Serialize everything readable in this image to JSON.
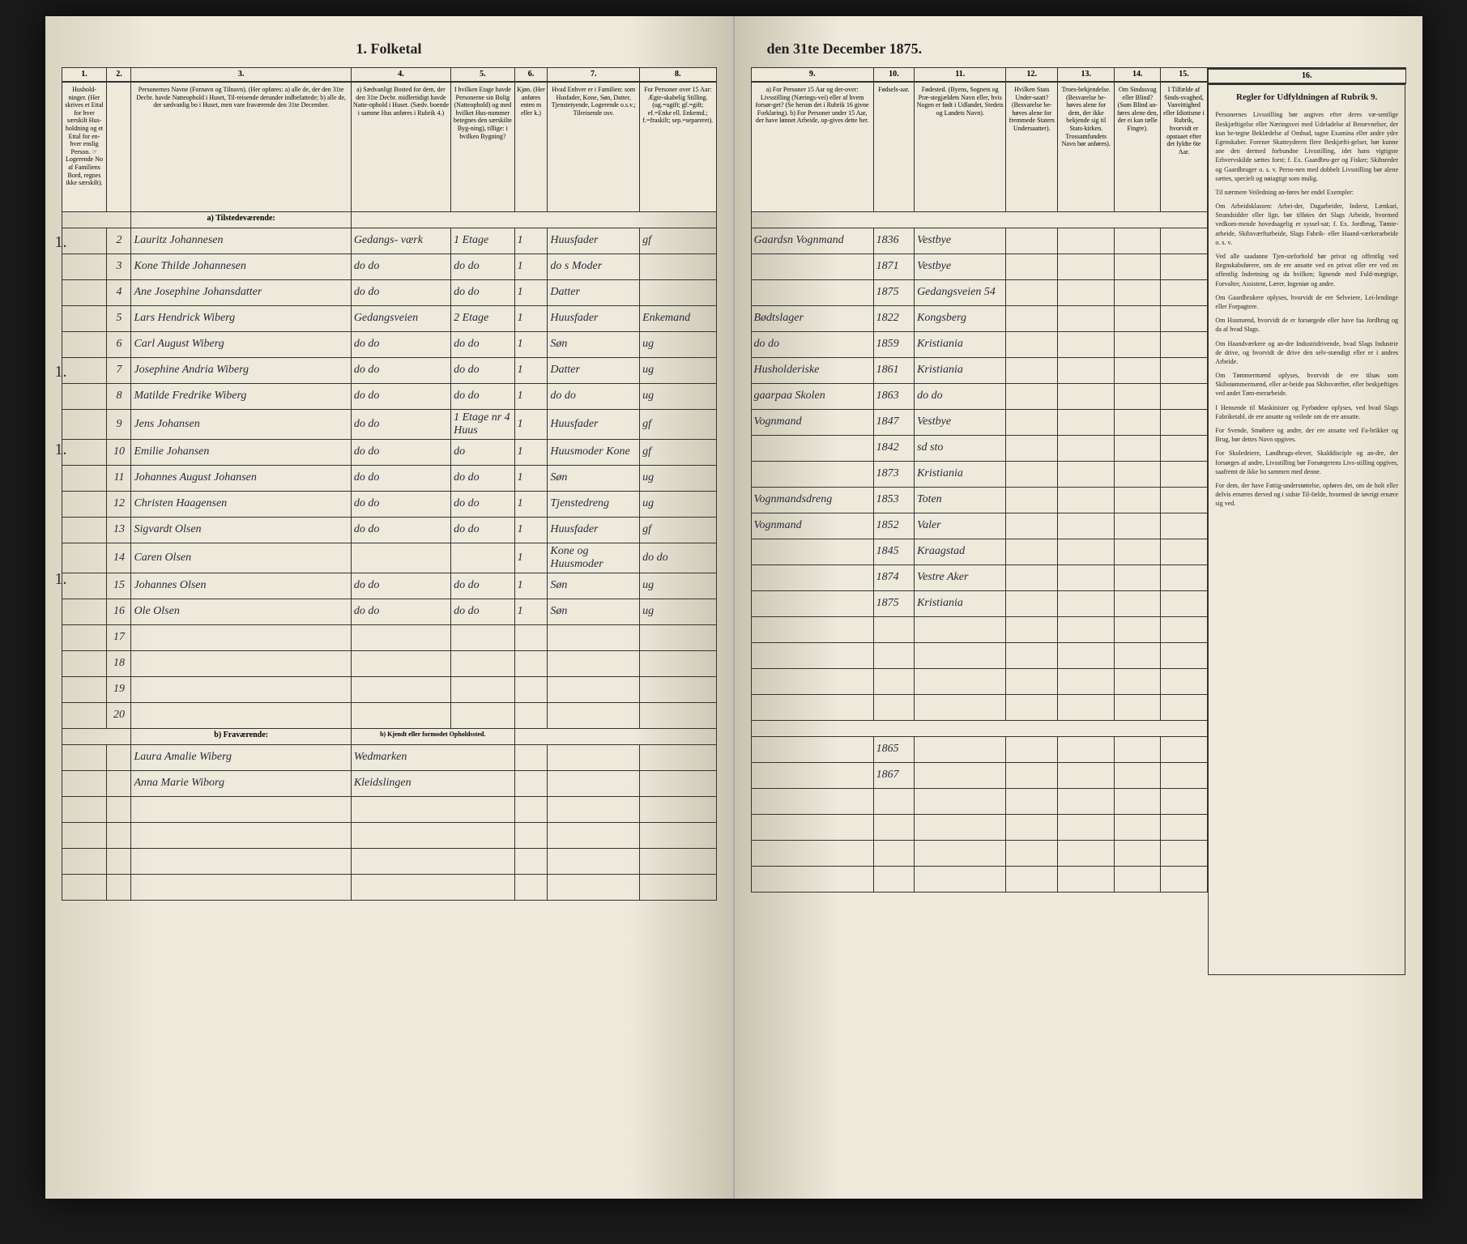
{
  "title_left": "1. Folketal",
  "title_right": "den 31te December 1875.",
  "col_nums_left": [
    "1.",
    "2.",
    "3.",
    "4.",
    "5.",
    "6.",
    "7.",
    "8."
  ],
  "col_nums_right": [
    "9.",
    "10.",
    "11.",
    "12.",
    "13.",
    "14.",
    "15.",
    "16."
  ],
  "headers_left": {
    "c1": "Hushold-ninger.\n(Her skrives et Ettal for hver særskilt Hus-holdning og et Ettal for en-hver enslig Person.\n☞ Logerende No af Familiens Bord, regnes ikke særskilt).",
    "c2": "",
    "c3": "Personernes Navne (Fornavn og Tilnavn).\n(Her opføres:\na) alle de, der den 31te Decbr. havde Natteophold i Huset, Til-reisende derunder indbefattede;\nb) alle de, der sædvanlig bo i Huset, men vare fraværende den 31te December.",
    "c4": "a) Sædvanligt Bosted for dem, der den 31te Decbr. midlertidigt havde Natte-ophold i Huset.\n(Sædv. boende i samme Hus anføres i Rubrik 4.)",
    "c5": "I hvilken Etage havde Personerne sin Bolig (Natteophold) og med hvilket Hus-nummer betegnes den særskilte Byg-ning), tillige: i hvilken Bygning?",
    "c6": "Kjøn.\n(Her anføres enten m eller k.)",
    "c7": "Hvad Enhver er i Familien:\nsom Husfader, Kone, Søn, Datter, Tjenstetyende, Logerende o.s.v.; Tilreisende osv.",
    "c8": "For Personer over 15 Aar: Ægte-skabelig Stilling.\n(ug.=ugift; gf.=gift; ef.=Enke ell. Enkemd.; f.=fraskilt; sep.=separeret)."
  },
  "headers_right": {
    "c9": "a) For Personer 15 Aar og der-over: Livsstilling (Nærings-vei) eller af hvem forsør-get? (Se herom det i Rubrik 16 givne Forklaring).\nb) For Personer under 15 Aar, der have lønnet Arbeide, op-gives dette her.",
    "c10": "Fødsels-aar.",
    "c11": "Fødested.\n(Byens, Sognets og Præ-stegjældets Navn eller, hvis Nogen er født i Udlandet, Stedets og Landets Navn).",
    "c12": "Hvilken Stats Under-saatt?\n(Besvarelse be-høves alene for fremmede Staters Undersaatter).",
    "c13": "Troes-bekjendelse.\n(Besvarelse be-høves alene for dem, der ikke bekjende sig til Stats-kirken. Trossamfundets Navn bør anføres).",
    "c14": "Om Sindssvag eller Blind?\n(Som Blind an-føres alene den, der ei kan tælle Fingre).",
    "c15": "I Tilfælde af Sinds-svaghed, Vanvittighed eller Idiotisme i Rubrik, hvorvidt er opstaaet efter det fyldte 6te Aar."
  },
  "rules_title": "Regler for Udfyldningen\naf\nRubrik 9.",
  "rules_text": [
    "Personernes Livsstilling bør angives efter deres væ-sentlige Beskjæftigelse eller Næringsvei med Udeladelse af Benævnelser, der kun be-tegne Beklædelse af Ombud, tagne Examina eller andre ydre Egenskaber. Forener Skatteyderen flere Beskjæfti-gelser, bør kunne ane den dermed forbundne Livsstilling, idet hans vigtigste Erhvervskilde sættes forst; f. Ex. Gaardbru-ger og Fisker; Skibsreder og Gaardbruger o. s. v. Perso-nen med dobbelt Livsstilling bør alene sættes, specielt og nøiagtigt som mulig.",
    "Til nærmere Veiledning an-føres her endel Exempler:",
    "Om Arbeidsklassen: Arbei-der, Dagarbeider, Inderst, Lænkari, Strandsidder eller lign. bør tilføies det Slags Arbeide, hvormed vedkom-mende hovedsagelig er syssel-sat; f. Ex. Jordbrug, Tømte-arbeide, Skibsværftarbeide, Slags Fabrik- eller Haand-værkerarbeide o. s. v.",
    "Ved alle saadanne Tjen-steforhold bør privat og offentlig ved Regnskabsførere, om de ere ansatte ved en privat eller ere ved en offentlig Indretning og da hvilken; lignende med Fuld-mægtige, Forvalter, Assistent, Lærer, Ingeniør og andre.",
    "Om Gaardbrukere oplyses, hvorvidt de ere Selveiere, Lei-lendinge eller Forpagtere.",
    "Om Husmænd, hvorvidt de er forsørgede eller have faa Jordbrug og da af hvad Slags.",
    "Om Haandværkere og an-dre Industridrivende, hvad Slags Industrie de drive, og hvorvidt de drive den selv-stændigt eller er i andres Arbeide.",
    "Om Tømmermænd oplyses, hvorvidt de ere tilsøs som Skibstømmermænd, eller ar-beide paa Skibsværfter, eller beskjæftiges ved andet Tøm-merarbeide.",
    "I Hensende til Maskinister og Fyrbødere oplyses, ved hvad Slags Fabriketabl. de ere ansatte og veilede om de ere ansatte.",
    "For Svende, Smøbere og andre, der ere ansatte ved Fa-brikker og Brug, bør dettes Navn opgives.",
    "For Skoledeiere, Landbrugs-elever, Skalddisciple og an-dre, der forsørges af andre, Livsstilling bør Forsørgerens Livs-stilling opgives, saafremt de ikke bo sammen med denne.",
    "For dem, der have Fattig-understøttelse, opføres det, om de holt eller delvis ernæres derved og i sidste Til-fælde, hvormed de iøvrigt ernære sig ved."
  ],
  "section_a": "a) Tilstedeværende:",
  "section_b": "b) Fraværende:",
  "section_b_header": "b) Kjendt eller formodet Opholdssted.",
  "rows": [
    {
      "n": "2",
      "name": "Lauritz Johannesen",
      "c4": "Gedangs-\nværk",
      "c5": "1 Etage",
      "c6": "1",
      "c7": "Huusfader",
      "c8": "gf",
      "c9": "Gaardsn\nVognmand",
      "c10": "1836",
      "c11": "Vestbye"
    },
    {
      "n": "3",
      "name": "Kone Thilde Johannesen",
      "c4": "do do",
      "c5": "do do",
      "c6": "1",
      "c7": "do s\nModer",
      "c8": "",
      "c9": "",
      "c10": "1871",
      "c11": "Vestbye"
    },
    {
      "n": "4",
      "name": "Ane Josephine Johansdatter",
      "c4": "do do",
      "c5": "do do",
      "c6": "1",
      "c7": "Datter",
      "c8": "",
      "c9": "",
      "c10": "1875",
      "c11": "Gedangsveien\n54"
    },
    {
      "n": "5",
      "name": "Lars Hendrick Wiberg",
      "c4": "Gedangsveien",
      "c5": "2 Etage",
      "c6": "1",
      "c7": "Huusfader",
      "c8": "Enkemand",
      "c9": "Bødtslager",
      "c10": "1822",
      "c11": "Kongsberg"
    },
    {
      "n": "6",
      "name": "Carl August Wiberg",
      "c4": "do do",
      "c5": "do do",
      "c6": "1",
      "c7": "Søn",
      "c8": "ug",
      "c9": "do do",
      "c10": "1859",
      "c11": "Kristiania"
    },
    {
      "n": "7",
      "name": "Josephine Andria Wiberg",
      "c4": "do do",
      "c5": "do do",
      "c6": "1",
      "c7": "Datter",
      "c8": "ug",
      "c9": "Husholderiske",
      "c10": "1861",
      "c11": "Kristiania"
    },
    {
      "n": "8",
      "name": "Matilde Fredrike Wiberg",
      "c4": "do do",
      "c5": "do do",
      "c6": "1",
      "c7": "do do",
      "c8": "ug",
      "c9": "gaarpaa Skolen",
      "c10": "1863",
      "c11": "do do"
    },
    {
      "n": "9",
      "name": "Jens Johansen",
      "c4": "do do",
      "c5": "1 Etage\nnr 4 Huus",
      "c6": "1",
      "c7": "Huusfader",
      "c8": "gf",
      "c9": "Vognmand",
      "c10": "1847",
      "c11": "Vestbye"
    },
    {
      "n": "10",
      "name": "Emilie Johansen",
      "c4": "do do",
      "c5": "do",
      "c6": "1",
      "c7": "Huusmoder\nKone",
      "c8": "gf",
      "c9": "",
      "c10": "1842",
      "c11": "sd sto"
    },
    {
      "n": "11",
      "name": "Johannes August Johansen",
      "c4": "do do",
      "c5": "do do",
      "c6": "1",
      "c7": "Søn",
      "c8": "ug",
      "c9": "",
      "c10": "1873",
      "c11": "Kristiania"
    },
    {
      "n": "12",
      "name": "Christen Haagensen",
      "c4": "do do",
      "c5": "do do",
      "c6": "1",
      "c7": "Tjenstedreng",
      "c8": "ug",
      "c9": "Vognmandsdreng",
      "c10": "1853",
      "c11": "Toten"
    },
    {
      "n": "13",
      "name": "Sigvardt Olsen",
      "c4": "do do",
      "c5": "do do",
      "c6": "1",
      "c7": "Huusfader",
      "c8": "gf",
      "c9": "Vognmand",
      "c10": "1852",
      "c11": "Valer"
    },
    {
      "n": "14",
      "name": "Caren Olsen",
      "c4": "",
      "c5": "",
      "c6": "1",
      "c7": "Kone og\nHuusmoder",
      "c8": "do do",
      "c9": "",
      "c10": "1845",
      "c11": "Kraagstad"
    },
    {
      "n": "15",
      "name": "Johannes Olsen",
      "c4": "do do",
      "c5": "do do",
      "c6": "1",
      "c7": "Søn",
      "c8": "ug",
      "c9": "",
      "c10": "1874",
      "c11": "Vestre Aker"
    },
    {
      "n": "16",
      "name": "Ole Olsen",
      "c4": "do do",
      "c5": "do do",
      "c6": "1",
      "c7": "Søn",
      "c8": "ug",
      "c9": "",
      "c10": "1875",
      "c11": "Kristiania"
    },
    {
      "n": "17",
      "name": "",
      "c4": "",
      "c5": "",
      "c6": "",
      "c7": "",
      "c8": "",
      "c9": "",
      "c10": "",
      "c11": ""
    },
    {
      "n": "18",
      "name": "",
      "c4": "",
      "c5": "",
      "c6": "",
      "c7": "",
      "c8": "",
      "c9": "",
      "c10": "",
      "c11": ""
    },
    {
      "n": "19",
      "name": "",
      "c4": "",
      "c5": "",
      "c6": "",
      "c7": "",
      "c8": "",
      "c9": "",
      "c10": "",
      "c11": ""
    },
    {
      "n": "20",
      "name": "",
      "c4": "",
      "c5": "",
      "c6": "",
      "c7": "",
      "c8": "",
      "c9": "",
      "c10": "",
      "c11": ""
    }
  ],
  "absent": [
    {
      "name": "Laura Amalie Wiberg",
      "place": "Wedmarken",
      "c10": "1865"
    },
    {
      "name": "Anna Marie Wiborg",
      "place": "Kleidslingen",
      "c10": "1867"
    }
  ],
  "margin_marks": [
    {
      "row": 0,
      "text": "1."
    },
    {
      "row": 5,
      "text": "1."
    },
    {
      "row": 8,
      "text": "1."
    },
    {
      "row": 13,
      "text": "1."
    }
  ],
  "colors": {
    "page_bg": "#ede9db",
    "border": "#333333",
    "text": "#222222",
    "handwriting": "#2a2a3a",
    "outer_bg": "#1a1a1a"
  }
}
